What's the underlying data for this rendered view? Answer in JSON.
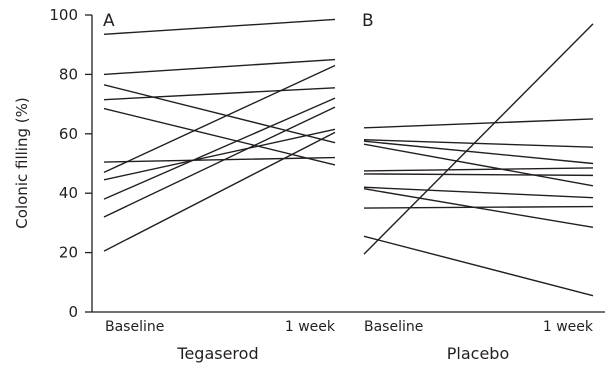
{
  "chart_data": {
    "type": "line",
    "ylabel": "Colonic filling (%)",
    "ylim": [
      0,
      100
    ],
    "yticks": [
      "0",
      "20",
      "40",
      "60",
      "80",
      "100"
    ],
    "categories": [
      "Baseline",
      "1 week"
    ],
    "grid": false,
    "panels": [
      {
        "label": "A",
        "group": "Tegaserod",
        "lines": [
          [
            93.5,
            98.5
          ],
          [
            80,
            85
          ],
          [
            76.5,
            57
          ],
          [
            71.5,
            75.5
          ],
          [
            68.5,
            49.5
          ],
          [
            50.5,
            52
          ],
          [
            47,
            83
          ],
          [
            44.5,
            61.5
          ],
          [
            38,
            72
          ],
          [
            32,
            69
          ],
          [
            20.5,
            60.5
          ]
        ]
      },
      {
        "label": "B",
        "group": "Placebo",
        "lines": [
          [
            62,
            65
          ],
          [
            58,
            55.5
          ],
          [
            57.5,
            50
          ],
          [
            56.5,
            42.5
          ],
          [
            47.5,
            48.5
          ],
          [
            46.5,
            46
          ],
          [
            42,
            38.5
          ],
          [
            41.5,
            28.5
          ],
          [
            35,
            35.5
          ],
          [
            25.5,
            5.5
          ],
          [
            19.5,
            97
          ]
        ]
      }
    ]
  }
}
